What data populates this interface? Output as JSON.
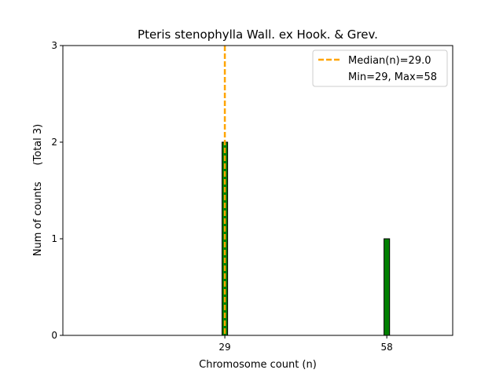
{
  "chart_data": {
    "type": "bar",
    "title": "Pteris stenophylla Wall. ex Hook. & Grev.",
    "xlabel": "Chromosome count (n)",
    "ylabel": "Num of counts     (Total 3)",
    "xlim": [
      0,
      69.8
    ],
    "ylim": [
      0,
      3
    ],
    "x_ticks": [
      29,
      58
    ],
    "y_ticks": [
      0,
      1,
      2,
      3
    ],
    "bin_width": 1,
    "bars": [
      {
        "x": 29,
        "count": 2
      },
      {
        "x": 58,
        "count": 1
      }
    ],
    "median": 29.0,
    "legend": {
      "position": "top-right",
      "entries": [
        "Median(n)=29.0",
        "Min=29, Max=58"
      ]
    },
    "colors": {
      "bar": "#008000",
      "bar_edge": "#000000",
      "median": "#FFA500"
    }
  }
}
